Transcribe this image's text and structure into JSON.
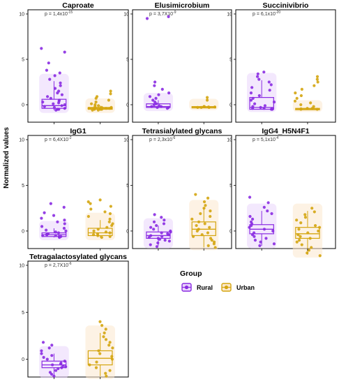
{
  "y_axis_label": "Normalized values",
  "legend": {
    "title": "Group",
    "items": [
      {
        "label": "Rural",
        "color": "#8a2be2",
        "fill": "#e9d5fb"
      },
      {
        "label": "Urban",
        "color": "#d4a50f",
        "fill": "#fbe8cd"
      }
    ]
  },
  "chart_data": [
    {
      "type": "box",
      "title": "Caproate",
      "p_value": "p = 1,4x10",
      "p_exp": "-15",
      "ylim": [
        -1,
        10
      ],
      "yticks": [
        0,
        5,
        10
      ],
      "series": [
        {
          "name": "Rural",
          "q1": -0.4,
          "median": -0.1,
          "q3": 0.6,
          "whisker_low": -0.6,
          "whisker_high": 2.6,
          "points": [
            6.2,
            5.8,
            4.6,
            3.8,
            3.5,
            3.2,
            2.8,
            2.4,
            2.1,
            1.8,
            1.5,
            1.3,
            1.1,
            0.9,
            0.7,
            0.5,
            0.4,
            0.3,
            0.2,
            0.1,
            0.0,
            -0.1,
            -0.2,
            -0.3,
            -0.4,
            -0.5,
            -0.5,
            -0.6
          ]
        },
        {
          "name": "Urban",
          "q1": -0.5,
          "median": -0.4,
          "q3": -0.3,
          "whisker_low": -0.6,
          "whisker_high": -0.1,
          "points": [
            1.5,
            1.2,
            0.9,
            0.7,
            0.5,
            0.3,
            0.1,
            0.0,
            -0.1,
            -0.2,
            -0.3,
            -0.3,
            -0.4,
            -0.4,
            -0.4,
            -0.5,
            -0.5,
            -0.5,
            -0.6,
            -0.6
          ]
        }
      ]
    },
    {
      "type": "box",
      "title": "Elusimicrobium",
      "p_value": "p = 3,7X10",
      "p_exp": "-9",
      "ylim": [
        -1,
        10
      ],
      "yticks": [
        0,
        5,
        10
      ],
      "series": [
        {
          "name": "Rural",
          "q1": -0.3,
          "median": -0.2,
          "q3": 0.1,
          "whisker_low": -0.4,
          "whisker_high": 0.5,
          "points": [
            9.7,
            9.5,
            2.5,
            2.1,
            1.7,
            1.3,
            1.1,
            0.9,
            0.7,
            0.5,
            0.3,
            0.1,
            0.0,
            -0.1,
            -0.2,
            -0.2,
            -0.3,
            -0.3,
            -0.4
          ]
        },
        {
          "name": "Urban",
          "q1": -0.3,
          "median": -0.25,
          "q3": -0.2,
          "whisker_low": -0.3,
          "whisker_high": -0.15,
          "points": [
            0.8,
            0.5,
            -0.2,
            -0.2,
            -0.25,
            -0.25,
            -0.3,
            -0.3,
            -0.3
          ]
        }
      ]
    },
    {
      "type": "box",
      "title": "Succinivibrio",
      "p_value": "p = 6,1x10",
      "p_exp": "-20",
      "ylim": [
        -1,
        10
      ],
      "yticks": [
        0,
        5,
        10
      ],
      "series": [
        {
          "name": "Rural",
          "q1": -0.5,
          "median": -0.3,
          "q3": 0.8,
          "whisker_low": -0.5,
          "whisker_high": 2.7,
          "points": [
            3.6,
            3.4,
            3.1,
            2.8,
            2.5,
            2.2,
            1.9,
            1.6,
            1.3,
            1.0,
            0.7,
            0.5,
            0.3,
            0.1,
            -0.1,
            -0.2,
            -0.3,
            -0.4,
            -0.4,
            -0.5,
            -0.5
          ]
        },
        {
          "name": "Urban",
          "q1": -0.5,
          "median": -0.45,
          "q3": -0.4,
          "whisker_low": -0.5,
          "whisker_high": -0.3,
          "points": [
            3.1,
            2.8,
            2.5,
            2.1,
            1.7,
            1.3,
            1.0,
            0.7,
            0.4,
            0.2,
            0.0,
            -0.2,
            -0.4,
            -0.4,
            -0.45,
            -0.5,
            -0.5
          ]
        }
      ]
    },
    {
      "type": "box",
      "title": "IgG1",
      "p_value": "p = 6,4X10",
      "p_exp": "-2",
      "ylim": [
        -1,
        10
      ],
      "yticks": [
        0,
        5,
        10
      ],
      "series": [
        {
          "name": "Rural",
          "q1": -0.6,
          "median": -0.4,
          "q3": -0.2,
          "whisker_low": -0.7,
          "whisker_high": 0.3,
          "points": [
            3.0,
            2.6,
            2.0,
            1.7,
            1.4,
            1.2,
            1.0,
            0.8,
            0.5,
            0.3,
            0.1,
            0.0,
            -0.1,
            -0.2,
            -0.3,
            -0.4,
            -0.4,
            -0.5,
            -0.5,
            -0.6,
            -0.6,
            -0.7
          ]
        },
        {
          "name": "Urban",
          "q1": -0.5,
          "median": -0.2,
          "q3": 0.3,
          "whisker_low": -0.7,
          "whisker_high": 1.2,
          "points": [
            3.4,
            3.2,
            3.0,
            2.7,
            2.4,
            2.1,
            1.9,
            1.6,
            1.3,
            1.0,
            0.8,
            0.6,
            0.4,
            0.2,
            0.0,
            -0.1,
            -0.2,
            -0.3,
            -0.4,
            -0.5,
            -0.6,
            -0.7
          ]
        }
      ]
    },
    {
      "type": "box",
      "title": "Tetrasialylated glycans",
      "p_value": "p = 2,3x10",
      "p_exp": "-6",
      "ylim": [
        -1,
        10
      ],
      "yticks": [
        0,
        5,
        10
      ],
      "series": [
        {
          "name": "Rural",
          "q1": -0.8,
          "median": -0.5,
          "q3": -0.1,
          "whisker_low": -1.6,
          "whisker_high": 0.6,
          "points": [
            1.8,
            1.5,
            1.2,
            1.0,
            0.8,
            0.6,
            0.4,
            0.2,
            0.0,
            -0.1,
            -0.2,
            -0.3,
            -0.4,
            -0.5,
            -0.6,
            -0.7,
            -0.8,
            -0.9,
            -1.0,
            -1.1,
            -1.3,
            -1.5,
            -1.7
          ]
        },
        {
          "name": "Urban",
          "q1": -0.5,
          "median": 0.2,
          "q3": 1.0,
          "whisker_low": -1.8,
          "whisker_high": 2.6,
          "points": [
            4.0,
            3.6,
            3.2,
            2.8,
            2.5,
            2.2,
            1.9,
            1.6,
            1.3,
            1.0,
            0.8,
            0.6,
            0.4,
            0.2,
            0.0,
            -0.2,
            -0.4,
            -0.6,
            -0.8,
            -1.0,
            -1.2,
            -1.4,
            -1.6,
            -1.8
          ]
        }
      ]
    },
    {
      "type": "box",
      "title": "IgG4_H5N4F1",
      "p_value": "p = 5,1x10",
      "p_exp": "-4",
      "ylim": [
        -1,
        10
      ],
      "yticks": [
        0,
        5,
        10
      ],
      "series": [
        {
          "name": "Rural",
          "q1": -0.3,
          "median": 0.2,
          "q3": 0.7,
          "whisker_low": -1.6,
          "whisker_high": 2.2,
          "points": [
            3.7,
            3.1,
            2.6,
            2.2,
            1.9,
            1.6,
            1.3,
            1.0,
            0.8,
            0.6,
            0.4,
            0.2,
            0.0,
            -0.2,
            -0.4,
            -0.6,
            -0.8,
            -1.0,
            -1.2,
            -1.4,
            -1.6
          ]
        },
        {
          "name": "Urban",
          "q1": -0.8,
          "median": -0.3,
          "q3": 0.4,
          "whisker_low": -2.6,
          "whisker_high": 2.2,
          "points": [
            2.5,
            2.1,
            1.8,
            1.5,
            1.2,
            0.9,
            0.6,
            0.4,
            0.2,
            0.0,
            -0.2,
            -0.4,
            -0.6,
            -0.8,
            -1.0,
            -1.2,
            -1.5,
            -1.8,
            -2.1,
            -2.4,
            -2.7
          ]
        }
      ]
    },
    {
      "type": "box",
      "title": "Tetragalactosylated glycans",
      "p_value": "p = 2,7X10",
      "p_exp": "-6",
      "ylim": [
        -1,
        10
      ],
      "yticks": [
        0,
        5,
        10
      ],
      "series": [
        {
          "name": "Rural",
          "q1": -0.9,
          "median": -0.6,
          "q3": -0.2,
          "whisker_low": -1.7,
          "whisker_high": 0.6,
          "points": [
            1.8,
            1.5,
            1.2,
            0.9,
            0.6,
            0.4,
            0.2,
            0.0,
            -0.2,
            -0.4,
            -0.5,
            -0.6,
            -0.7,
            -0.8,
            -0.9,
            -1.0,
            -1.2,
            -1.4,
            -1.6,
            -1.8
          ]
        },
        {
          "name": "Urban",
          "q1": -0.6,
          "median": 0.1,
          "q3": 0.9,
          "whisker_low": -1.8,
          "whisker_high": 2.8,
          "points": [
            4.0,
            3.6,
            3.2,
            2.8,
            2.4,
            2.1,
            1.8,
            1.5,
            1.2,
            0.9,
            0.6,
            0.3,
            0.0,
            -0.3,
            -0.6,
            -0.9,
            -1.2,
            -1.5,
            -1.8
          ]
        }
      ]
    }
  ]
}
